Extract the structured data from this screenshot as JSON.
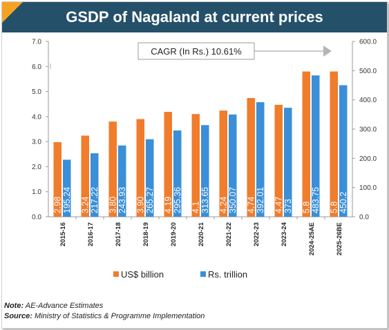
{
  "title": "GSDP of Nagaland at current prices",
  "annotation": "CAGR (In Rs.) 10.61%",
  "note_label": "Note:",
  "note_text": "AE-Advance Estimates",
  "source_label": "Source:",
  "source_text": "Ministry of Statistics & Programme Implementation",
  "colors": {
    "usd": "#f07c2c",
    "inr": "#3a8fd8",
    "title_bg": "#24506a",
    "accent": "#f5a223"
  },
  "chart_data": {
    "type": "bar",
    "categories": [
      "2015-16",
      "2016-17",
      "2017-18",
      "2018-19",
      "2019-20",
      "2020-21",
      "2021-22",
      "2022-23",
      "2023-24",
      "2024-25AE",
      "2025-26BE"
    ],
    "series": [
      {
        "name": "US$ billion",
        "axis": "left",
        "values": [
          2.98,
          3.24,
          3.8,
          3.9,
          4.19,
          4.1,
          4.24,
          4.74,
          4.47,
          5.8,
          5.8
        ],
        "labels": [
          "2.98",
          "3.24",
          "3.80",
          "3.90",
          "4.19",
          "4.1",
          "4.24",
          "4.74",
          "4.47",
          "5.8",
          "5.8"
        ]
      },
      {
        "name": "Rs. trillion",
        "axis": "right",
        "values": [
          195.24,
          217.22,
          243.93,
          265.27,
          295.36,
          313.65,
          350.07,
          392.01,
          373,
          483.75,
          450.2
        ],
        "labels": [
          "195.24",
          "217.22",
          "243.93",
          "265.27",
          "295.36",
          "313.65",
          "350.07",
          "392.01",
          "373",
          "483.75",
          "450.2"
        ]
      }
    ],
    "left_axis": {
      "min": 0,
      "max": 7,
      "ticks": [
        "0.0",
        "1.0",
        "2.0",
        "3.0",
        "4.0",
        "5.0",
        "6.0",
        "7.0"
      ]
    },
    "right_axis": {
      "min": 0,
      "max": 600,
      "ticks": [
        "0.0",
        "100.0",
        "200.0",
        "300.0",
        "400.0",
        "500.0",
        "600.0"
      ]
    },
    "legend_position": "bottom",
    "grid": false
  }
}
